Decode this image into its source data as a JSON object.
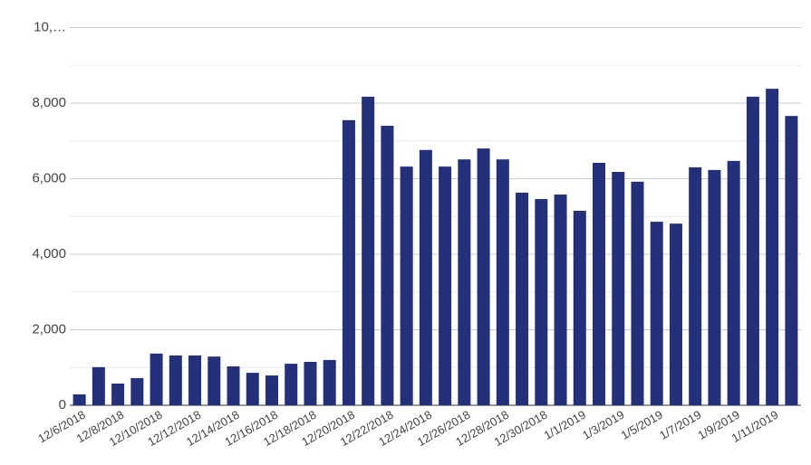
{
  "chart_data": {
    "type": "bar",
    "categories": [
      "12/6/2018",
      null,
      "12/8/2018",
      null,
      "12/10/2018",
      null,
      "12/12/2018",
      null,
      "12/14/2018",
      null,
      "12/16/2018",
      null,
      "12/18/2018",
      null,
      "12/20/2018",
      null,
      "12/22/2018",
      null,
      "12/24/2018",
      null,
      "12/26/2018",
      null,
      "12/28/2018",
      null,
      "12/30/2018",
      null,
      "1/1/2019",
      null,
      "1/3/2019",
      null,
      "1/5/2019",
      null,
      "1/7/2019",
      null,
      "1/9/2019",
      null,
      "1/11/2019",
      null
    ],
    "values": [
      290,
      1010,
      575,
      720,
      1370,
      1320,
      1320,
      1290,
      1030,
      860,
      790,
      1100,
      1150,
      1200,
      7550,
      8170,
      7400,
      6320,
      6760,
      6320,
      6510,
      6800,
      6510,
      5630,
      5460,
      5580,
      5150,
      6420,
      6180,
      5920,
      4860,
      4810,
      6300,
      6230,
      6470,
      8170,
      8380,
      7660
    ],
    "color": "#24317a",
    "ylim": [
      0,
      10000
    ],
    "yticks": [
      0,
      {
        "value": 2000,
        "label": "2,000"
      },
      {
        "value": 4000,
        "label": "4,000"
      },
      {
        "value": 6000,
        "label": "6,000"
      },
      {
        "value": 8000,
        "label": "8,000"
      },
      {
        "value": 10000,
        "label": "10,…"
      }
    ],
    "minor_yticks": [
      1000,
      3000,
      5000,
      7000,
      9000
    ],
    "grid": true
  }
}
